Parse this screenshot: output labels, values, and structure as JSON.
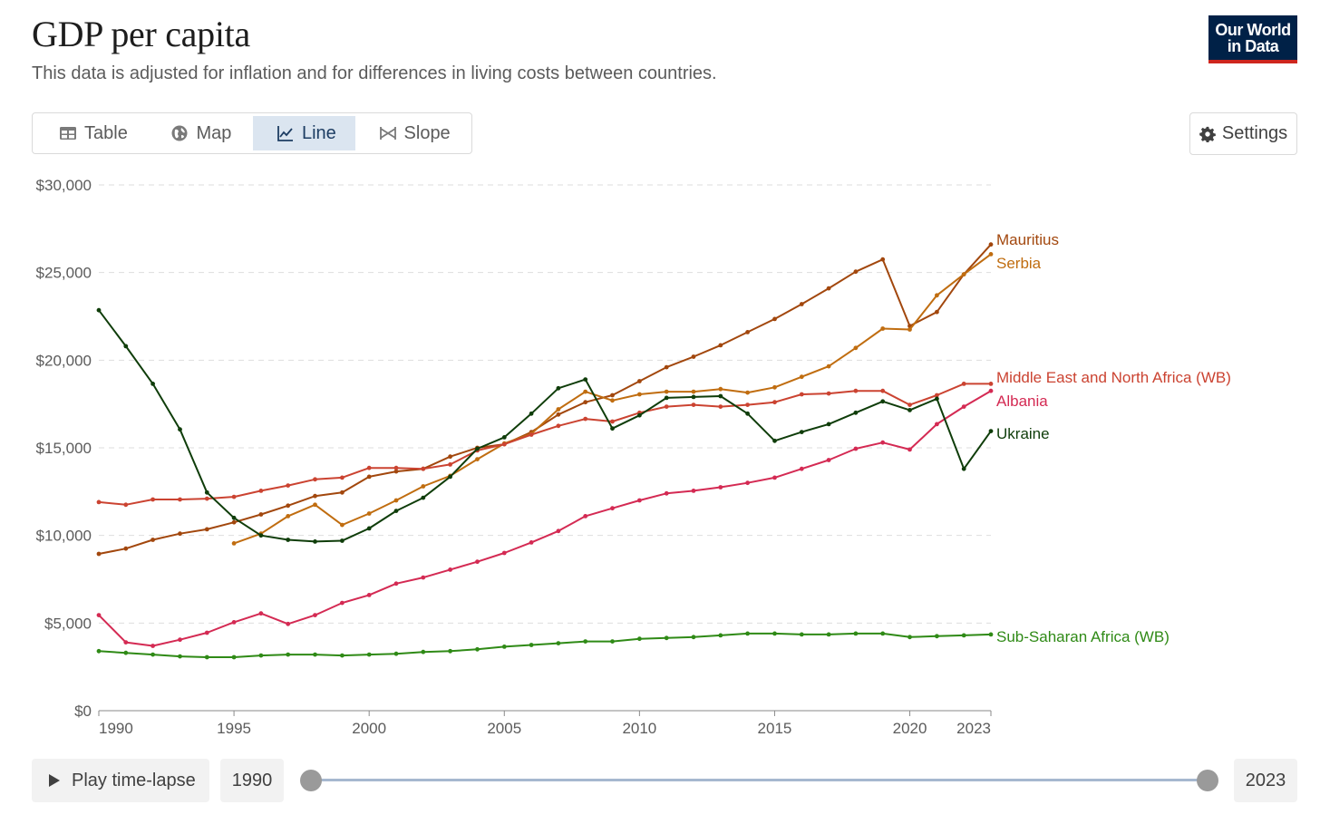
{
  "header": {
    "title": "GDP per capita",
    "subtitle": "This data is adjusted for inflation and for differences in living costs between countries.",
    "logo_line1": "Our World",
    "logo_line2": "in Data"
  },
  "tabs": [
    {
      "label": "Table",
      "icon": "table-icon",
      "active": false
    },
    {
      "label": "Map",
      "icon": "globe-icon",
      "active": false
    },
    {
      "label": "Line",
      "icon": "line-chart-icon",
      "active": true
    },
    {
      "label": "Slope",
      "icon": "slope-icon",
      "active": false
    }
  ],
  "settings_label": "Settings",
  "timeline": {
    "play_label": "Play time-lapse",
    "start_year": "1990",
    "end_year": "2023"
  },
  "colors": {
    "grid": "#dddddd",
    "axis": "#5b5b5b",
    "active_tab_bg": "#dbe5f0",
    "logo_bg": "#002147",
    "logo_accent": "#ce261e"
  },
  "chart_data": {
    "type": "line",
    "xlim": [
      1990,
      2023
    ],
    "ylim": [
      0,
      30000
    ],
    "x_ticks": [
      1990,
      1995,
      2000,
      2005,
      2010,
      2015,
      2020,
      2023
    ],
    "x_tick_labels": [
      "1990",
      "1995",
      "2000",
      "2005",
      "2010",
      "2015",
      "2020",
      "2023"
    ],
    "y_ticks": [
      0,
      5000,
      10000,
      15000,
      20000,
      25000,
      30000
    ],
    "y_tick_labels": [
      "$0",
      "$5,000",
      "$10,000",
      "$15,000",
      "$20,000",
      "$25,000",
      "$30,000"
    ],
    "grid": "horizontal dashed",
    "legend": "line-end labels",
    "series": [
      {
        "name": "Mauritius",
        "color": "#a2470d",
        "x_start": 1990,
        "values": [
          8950,
          9250,
          9750,
          10100,
          10350,
          10750,
          11200,
          11700,
          12250,
          12450,
          13350,
          13650,
          13800,
          14500,
          15000,
          15200,
          15900,
          16900,
          17600,
          18000,
          18800,
          19600,
          20200,
          20850,
          21600,
          22350,
          23200,
          24100,
          25050,
          25750,
          21950,
          22750,
          24900,
          26600
        ]
      },
      {
        "name": "Serbia",
        "color": "#c06d10",
        "x_start": 1995,
        "values": [
          9550,
          10100,
          11100,
          11750,
          10600,
          11250,
          12000,
          12800,
          13400,
          14350,
          15250,
          15800,
          17200,
          18200,
          17700,
          18050,
          18200,
          18200,
          18350,
          18150,
          18450,
          19050,
          19650,
          20700,
          21800,
          21750,
          23700,
          24900,
          26050
        ]
      },
      {
        "name": "Middle East and North Africa (WB)",
        "color": "#cb4331",
        "x_start": 1990,
        "values": [
          11900,
          11750,
          12050,
          12050,
          12100,
          12200,
          12550,
          12850,
          13200,
          13300,
          13850,
          13850,
          13800,
          14050,
          14850,
          15200,
          15750,
          16250,
          16650,
          16500,
          17000,
          17350,
          17450,
          17350,
          17450,
          17600,
          18050,
          18100,
          18250,
          18250,
          17450,
          18000,
          18650,
          18650
        ]
      },
      {
        "name": "Albania",
        "color": "#d42a53",
        "x_start": 1990,
        "values": [
          5450,
          3900,
          3700,
          4050,
          4450,
          5050,
          5550,
          4950,
          5450,
          6150,
          6600,
          7250,
          7600,
          8050,
          8500,
          9000,
          9600,
          10250,
          11100,
          11550,
          12000,
          12400,
          12550,
          12750,
          13000,
          13300,
          13800,
          14300,
          14950,
          15300,
          14900,
          16350,
          17350,
          18250
        ]
      },
      {
        "name": "Ukraine",
        "color": "#0f3d0a",
        "x_start": 1990,
        "values": [
          22850,
          20800,
          18650,
          16050,
          12450,
          11000,
          10000,
          9750,
          9650,
          9700,
          10400,
          11400,
          12150,
          13350,
          14950,
          15600,
          16950,
          18400,
          18900,
          16100,
          16850,
          17850,
          17900,
          17950,
          16950,
          15400,
          15900,
          16350,
          17000,
          17650,
          17150,
          17800,
          13800,
          15950
        ]
      },
      {
        "name": "Sub-Saharan Africa (WB)",
        "color": "#2f8a16",
        "x_start": 1990,
        "values": [
          3400,
          3300,
          3200,
          3100,
          3050,
          3050,
          3150,
          3200,
          3200,
          3150,
          3200,
          3250,
          3350,
          3400,
          3500,
          3650,
          3750,
          3850,
          3950,
          3950,
          4100,
          4150,
          4200,
          4300,
          4400,
          4400,
          4350,
          4350,
          4400,
          4400,
          4200,
          4250,
          4300,
          4350
        ]
      }
    ]
  }
}
